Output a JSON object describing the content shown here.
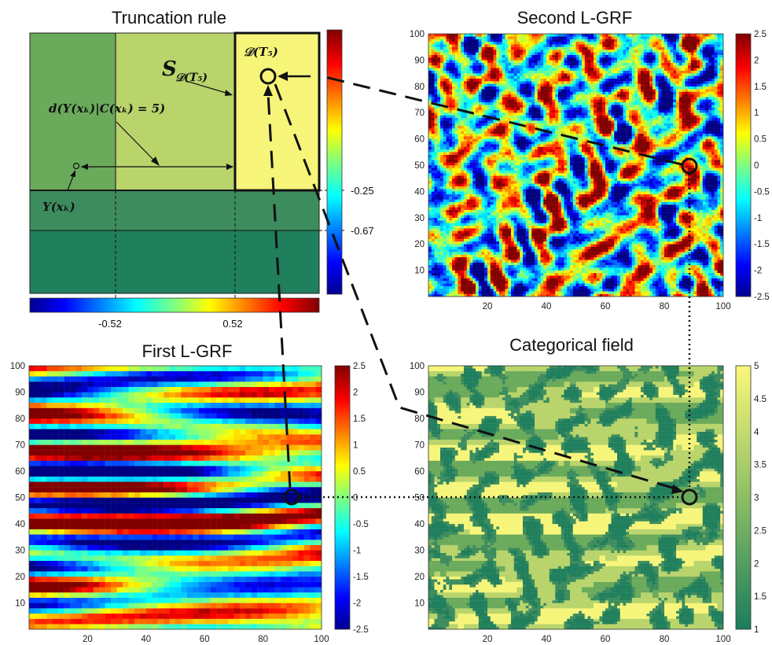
{
  "panels": {
    "truncation": {
      "title": "Truncation rule",
      "x_thresholds": [
        "-0.52",
        "0.52"
      ],
      "y_thresholds": [
        "-0.25",
        "-0.67"
      ],
      "labels": {
        "s_main": "S",
        "s_sub": "𝒟(T₅)",
        "d_region": "𝒟(T₅)",
        "distance": "d(Y(xₖ)|C(xₖ) = 5)",
        "point": "Y(xₖ)"
      }
    },
    "first_grf": {
      "title": "First L-GRF",
      "x_ticks": [
        "20",
        "40",
        "60",
        "80",
        "100"
      ],
      "y_ticks": [
        "10",
        "20",
        "30",
        "40",
        "50",
        "60",
        "70",
        "80",
        "90",
        "100"
      ],
      "colorbar_ticks": [
        "2.5",
        "2",
        "1.5",
        "1",
        "0.5",
        "0",
        "-0.5",
        "-1",
        "-1.5",
        "-2",
        "-2.5"
      ]
    },
    "second_grf": {
      "title": "Second L-GRF",
      "x_ticks": [
        "20",
        "40",
        "60",
        "80",
        "100"
      ],
      "y_ticks": [
        "10",
        "20",
        "30",
        "40",
        "50",
        "60",
        "70",
        "80",
        "90",
        "100"
      ],
      "colorbar_ticks": [
        "2.5",
        "2",
        "1.5",
        "1",
        "0.5",
        "0",
        "-0.5",
        "-1",
        "-1.5",
        "-2",
        "-2.5"
      ]
    },
    "categorical": {
      "title": "Categorical field",
      "x_ticks": [
        "20",
        "40",
        "60",
        "80",
        "100"
      ],
      "y_ticks": [
        "10",
        "20",
        "30",
        "40",
        "50",
        "60",
        "70",
        "80",
        "90",
        "100"
      ],
      "colorbar_ticks": [
        "5",
        "4.5",
        "4",
        "3.5",
        "3",
        "2.5",
        "2",
        "1.5",
        "1"
      ]
    }
  },
  "colors": {
    "cat1": "#207f5c",
    "cat2": "#3d8c5e",
    "cat3": "#6aaa5b",
    "cat4": "#b8d46b",
    "cat5": "#f6f57a"
  },
  "marked_point": {
    "x": 90,
    "y": 50
  }
}
